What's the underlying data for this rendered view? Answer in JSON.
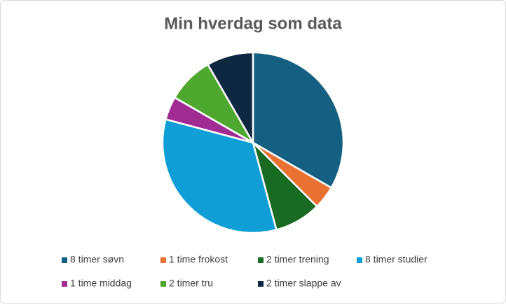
{
  "chart_data": {
    "type": "pie",
    "title": "Min hverdag som data",
    "categories": [
      "8 timer søvn",
      "1 time frokost",
      "2 timer trening",
      "8 timer studier",
      "1 time middag",
      "2 timer tru",
      "2 timer slappe av"
    ],
    "values": [
      8,
      1,
      2,
      8,
      1,
      2,
      2
    ],
    "colors": [
      "#156082",
      "#e97132",
      "#196b24",
      "#0f9ed5",
      "#a02b93",
      "#4ea72e",
      "#0e2841"
    ],
    "legend": "bottom"
  }
}
